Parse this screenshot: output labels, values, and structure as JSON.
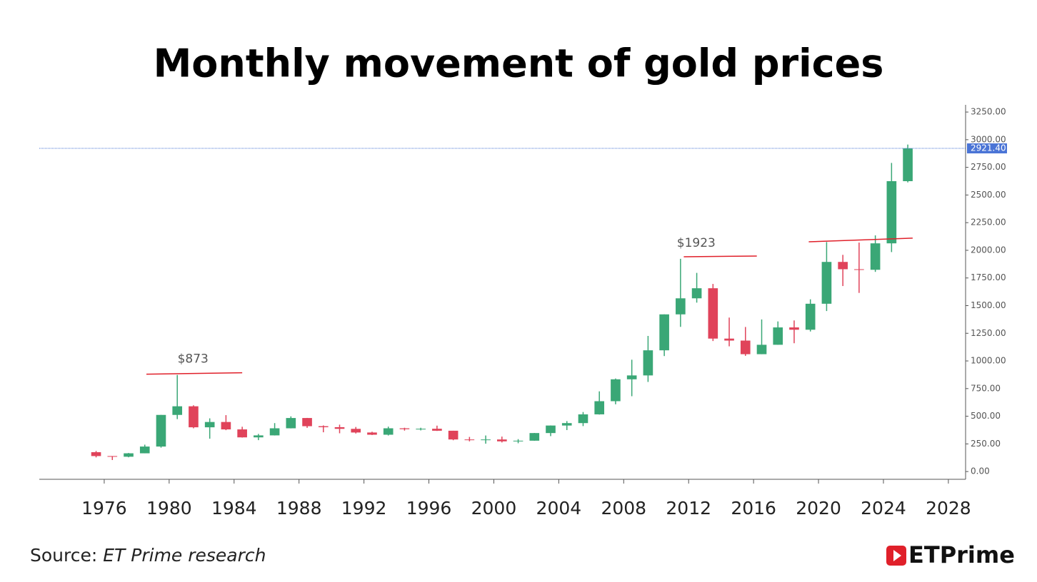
{
  "chart_data": {
    "type": "candlestick",
    "title": "Monthly movement of gold prices",
    "source_label": "Source:",
    "source": "ET Prime research",
    "logo": "ETPrime",
    "up_color": "#3aa776",
    "down_color": "#e0435a",
    "x": [
      1975,
      1976,
      1977,
      1978,
      1979,
      1980,
      1981,
      1982,
      1983,
      1984,
      1985,
      1986,
      1987,
      1988,
      1989,
      1990,
      1991,
      1992,
      1993,
      1994,
      1995,
      1996,
      1997,
      1998,
      1999,
      2000,
      2001,
      2002,
      2003,
      2004,
      2005,
      2006,
      2007,
      2008,
      2009,
      2010,
      2011,
      2012,
      2013,
      2014,
      2015,
      2016,
      2017,
      2018,
      2019,
      2020,
      2021,
      2022,
      2023,
      2024,
      2025
    ],
    "open": [
      175,
      140,
      134,
      165,
      226,
      512,
      590,
      400,
      448,
      381,
      309,
      327,
      391,
      484,
      410,
      401,
      386,
      353,
      333,
      391,
      383,
      387,
      369,
      290,
      288,
      290,
      273,
      279,
      348,
      416,
      438,
      517,
      636,
      834,
      869,
      1096,
      1421,
      1566,
      1657,
      1202,
      1184,
      1061,
      1146,
      1303,
      1282,
      1517,
      1895,
      1829,
      1824,
      2063,
      2625
    ],
    "high": [
      186,
      140,
      168,
      243,
      512,
      873,
      599,
      481,
      510,
      405,
      340,
      438,
      499,
      485,
      417,
      424,
      403,
      360,
      406,
      396,
      396,
      415,
      369,
      313,
      326,
      316,
      293,
      349,
      417,
      456,
      538,
      725,
      841,
      1011,
      1226,
      1421,
      1923,
      1796,
      1696,
      1392,
      1307,
      1375,
      1357,
      1366,
      1557,
      2075,
      1959,
      2070,
      2135,
      2790,
      2956
    ],
    "low": [
      128,
      104,
      129,
      165,
      216,
      474,
      391,
      297,
      374,
      307,
      284,
      326,
      390,
      395,
      355,
      346,
      344,
      330,
      326,
      370,
      372,
      367,
      283,
      273,
      252,
      263,
      256,
      278,
      320,
      375,
      411,
      515,
      608,
      681,
      810,
      1044,
      1308,
      1527,
      1180,
      1132,
      1046,
      1061,
      1146,
      1160,
      1266,
      1451,
      1677,
      1615,
      1805,
      1984,
      2614
    ],
    "close": [
      140,
      134,
      165,
      226,
      512,
      590,
      400,
      448,
      381,
      309,
      327,
      391,
      484,
      410,
      401,
      386,
      353,
      333,
      391,
      383,
      387,
      369,
      290,
      288,
      290,
      273,
      279,
      348,
      416,
      438,
      517,
      636,
      834,
      869,
      1096,
      1421,
      1566,
      1657,
      1202,
      1184,
      1061,
      1146,
      1303,
      1282,
      1517,
      1895,
      1829,
      1824,
      2063,
      2625,
      2921.4
    ],
    "xlim": [
      1972,
      2029.06
    ],
    "ylim": [
      -70,
      3315
    ],
    "xticks": [
      1976,
      1980,
      1984,
      1988,
      1992,
      1996,
      2000,
      2004,
      2008,
      2012,
      2016,
      2020,
      2024,
      2028
    ],
    "yticks": [
      {
        "value": 0,
        "label": "0.00"
      },
      {
        "value": 250,
        "label": "250.00"
      },
      {
        "value": 500,
        "label": "500.00"
      },
      {
        "value": 750,
        "label": "750.00"
      },
      {
        "value": 1000,
        "label": "1000.00"
      },
      {
        "value": 1250,
        "label": "1250.00"
      },
      {
        "value": 1500,
        "label": "1500.00"
      },
      {
        "value": 1750,
        "label": "1750.00"
      },
      {
        "value": 2000,
        "label": "2000.00"
      },
      {
        "value": 2250,
        "label": "2250.00"
      },
      {
        "value": 2500,
        "label": "2500.00"
      },
      {
        "value": 2750,
        "label": "2750.00"
      },
      {
        "value": 3000,
        "label": "3000.00"
      },
      {
        "value": 3250,
        "label": "3250.00"
      }
    ],
    "last_price": {
      "value": 2921.4,
      "label": "2921.40",
      "color": "#4a74d6"
    },
    "annotations": [
      {
        "text": "$873",
        "value": 873
      },
      {
        "text": "$1923",
        "value": 1923
      }
    ],
    "trendlines": [
      {
        "color": "#e0202a",
        "x": [
          1978.6,
          1984.5
        ],
        "y": [
          880,
          893
        ]
      },
      {
        "color": "#e0202a",
        "x": [
          2011.7,
          2016.2
        ],
        "y": [
          1942,
          1948
        ]
      },
      {
        "color": "#e0202a",
        "x": [
          2019.4,
          2025.8
        ],
        "y": [
          2077,
          2110
        ]
      }
    ]
  }
}
